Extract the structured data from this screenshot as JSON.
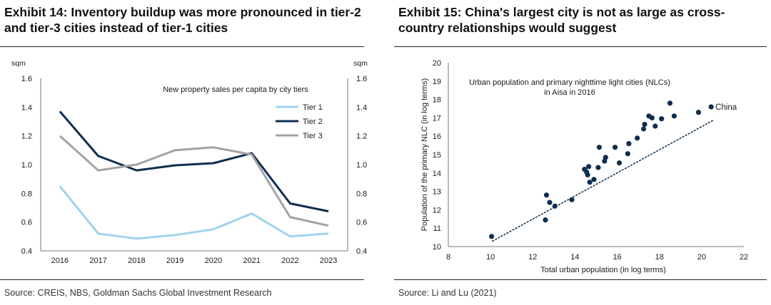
{
  "left": {
    "exhibit_title": "Exhibit 14: Inventory buildup was more pronounced in tier-2 and tier-3 cities instead of tier-1 cities",
    "source": "Source: CREIS, NBS, Goldman Sachs Global Investment Research",
    "chart_data": {
      "type": "line",
      "title": "New property sales per capita by city tiers",
      "y_unit_left": "sqm",
      "y_unit_right": "sqm",
      "categories": [
        "2016",
        "2017",
        "2018",
        "2019",
        "2020",
        "2021",
        "2022",
        "2023"
      ],
      "ylim": [
        0.4,
        1.6
      ],
      "yticks": [
        "0.4",
        "0.6",
        "0.8",
        "1.0",
        "1.2",
        "1.4",
        "1.6"
      ],
      "grid": false,
      "legend_position": "top-right",
      "series": [
        {
          "name": "Tier 1",
          "color": "#9fd3ee",
          "values": [
            0.85,
            0.52,
            0.485,
            0.51,
            0.55,
            0.66,
            0.5,
            0.52
          ]
        },
        {
          "name": "Tier 2",
          "color": "#0f2e4f",
          "values": [
            1.37,
            1.06,
            0.96,
            0.995,
            1.01,
            1.08,
            0.73,
            0.675
          ]
        },
        {
          "name": "Tier 3",
          "color": "#a3a3a3",
          "values": [
            1.2,
            0.96,
            1.0,
            1.1,
            1.12,
            1.07,
            0.635,
            0.575
          ]
        }
      ]
    }
  },
  "right": {
    "exhibit_title": "Exhibit 15: China's largest city is not as large as cross-country relationships would suggest",
    "source": "Source: Li and Lu (2021)",
    "chart_data": {
      "type": "scatter",
      "title": "Urban population and primary nighttime light cities (NLCs) in Aisa in 2016",
      "xlabel": "Total urban population (in log terms)",
      "ylabel": "Population of the primary NLC (in log terms)",
      "xlim": [
        8,
        22
      ],
      "ylim": [
        10,
        20
      ],
      "xticks": [
        "8",
        "10",
        "12",
        "14",
        "16",
        "18",
        "20",
        "22"
      ],
      "yticks": [
        "10",
        "11",
        "12",
        "13",
        "14",
        "15",
        "16",
        "17",
        "18",
        "19",
        "20"
      ],
      "point_color": "#0f2e4f",
      "trendline": {
        "style": "dotted",
        "x": [
          10.1,
          20.6
        ],
        "y": [
          10.3,
          16.9
        ]
      },
      "annotation": {
        "text": "China",
        "x": 20.45,
        "y": 17.6
      },
      "points": [
        {
          "x": 10.05,
          "y": 10.55
        },
        {
          "x": 12.6,
          "y": 11.45
        },
        {
          "x": 12.65,
          "y": 12.8
        },
        {
          "x": 12.8,
          "y": 12.4
        },
        {
          "x": 13.05,
          "y": 12.2
        },
        {
          "x": 13.85,
          "y": 12.55
        },
        {
          "x": 14.45,
          "y": 14.2
        },
        {
          "x": 14.55,
          "y": 14.05
        },
        {
          "x": 14.6,
          "y": 13.9
        },
        {
          "x": 14.65,
          "y": 14.35
        },
        {
          "x": 14.7,
          "y": 13.5
        },
        {
          "x": 14.9,
          "y": 13.65
        },
        {
          "x": 15.1,
          "y": 14.3
        },
        {
          "x": 15.15,
          "y": 15.4
        },
        {
          "x": 15.4,
          "y": 14.65
        },
        {
          "x": 15.45,
          "y": 14.85
        },
        {
          "x": 15.9,
          "y": 15.4
        },
        {
          "x": 16.1,
          "y": 14.55
        },
        {
          "x": 16.5,
          "y": 15.05
        },
        {
          "x": 16.55,
          "y": 15.6
        },
        {
          "x": 16.95,
          "y": 15.9
        },
        {
          "x": 17.25,
          "y": 16.4
        },
        {
          "x": 17.3,
          "y": 16.65
        },
        {
          "x": 17.5,
          "y": 17.1
        },
        {
          "x": 17.65,
          "y": 17.0
        },
        {
          "x": 17.8,
          "y": 16.55
        },
        {
          "x": 18.1,
          "y": 16.95
        },
        {
          "x": 18.5,
          "y": 17.8
        },
        {
          "x": 18.7,
          "y": 17.1
        },
        {
          "x": 19.85,
          "y": 17.3
        },
        {
          "x": 20.45,
          "y": 17.6
        }
      ]
    }
  }
}
